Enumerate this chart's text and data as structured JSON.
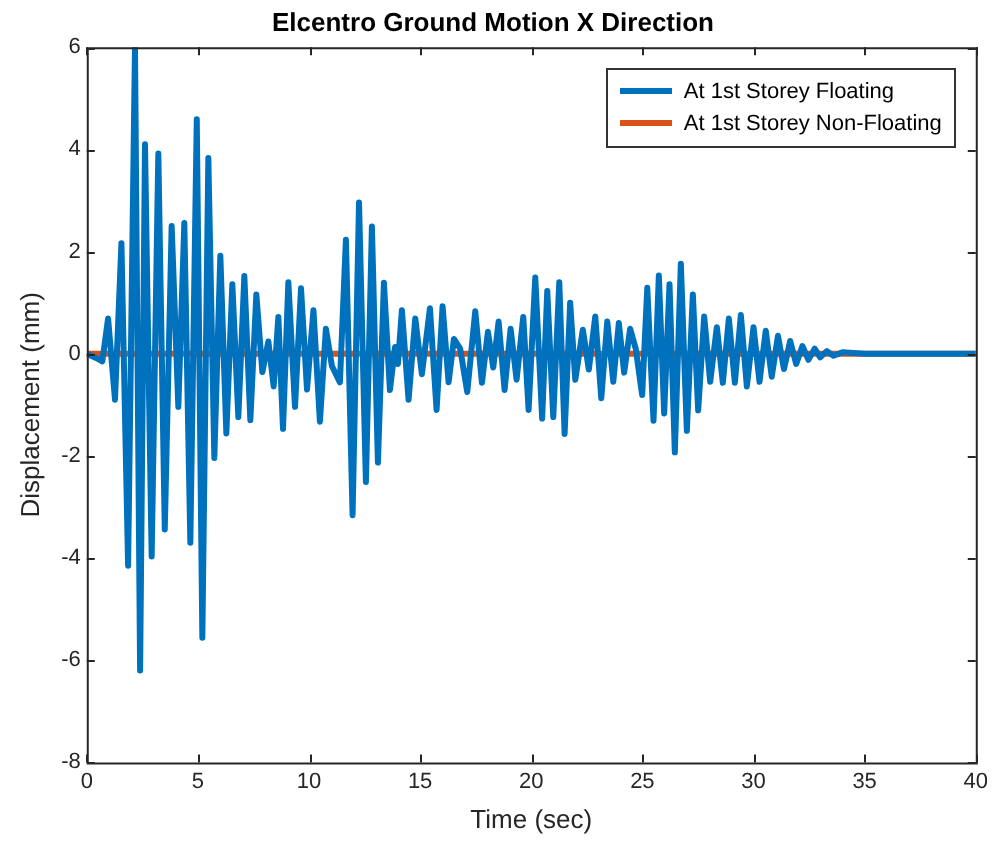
{
  "chart_data": {
    "type": "line",
    "title": "Elcentro Ground Motion X Direction",
    "xlabel": "Time (sec)",
    "ylabel": "Displacement (mm)",
    "xlim": [
      0,
      40
    ],
    "xticks": [
      0,
      5,
      10,
      15,
      20,
      25,
      30,
      35,
      40
    ],
    "ylim": [
      -8,
      6
    ],
    "yticks": [
      -8,
      -6,
      -4,
      -2,
      0,
      2,
      4,
      6
    ],
    "grid": false,
    "legend": "top right",
    "marker": "none",
    "line_style": "solid",
    "series": [
      {
        "name": "At 1st Storey Floating",
        "color": "#0072bd",
        "x": [
          0,
          0.5,
          0.7,
          0.96,
          1.27,
          1.56,
          1.86,
          2.17,
          2.4,
          2.62,
          2.92,
          3.22,
          3.51,
          3.82,
          4.12,
          4.39,
          4.66,
          4.95,
          5.2,
          5.47,
          5.74,
          6.01,
          6.28,
          6.55,
          6.82,
          7.09,
          7.36,
          7.63,
          7.9,
          8.17,
          8.41,
          8.62,
          8.83,
          9.07,
          9.37,
          9.64,
          9.91,
          10.2,
          10.49,
          10.76,
          11.03,
          11.39,
          11.66,
          11.96,
          12.25,
          12.56,
          12.83,
          13.1,
          13.37,
          13.64,
          13.87,
          14.0,
          14.18,
          14.48,
          14.78,
          15.08,
          15.44,
          15.74,
          16.01,
          16.28,
          16.52,
          16.8,
          17.12,
          17.48,
          17.78,
          18.05,
          18.29,
          18.53,
          18.8,
          19.07,
          19.34,
          19.64,
          19.88,
          20.18,
          20.49,
          20.72,
          20.99,
          21.26,
          21.5,
          21.75,
          21.98,
          22.32,
          22.59,
          22.88,
          23.15,
          23.42,
          23.69,
          23.94,
          24.18,
          24.45,
          24.7,
          24.99,
          25.22,
          25.5,
          25.74,
          25.98,
          26.22,
          26.46,
          26.73,
          27.0,
          27.27,
          27.51,
          27.78,
          28.05,
          28.35,
          28.62,
          28.89,
          29.16,
          29.43,
          29.7,
          30.0,
          30.27,
          30.55,
          30.82,
          31.1,
          31.37,
          31.65,
          31.92,
          32.2,
          32.47,
          32.75,
          33.0,
          33.3,
          33.6,
          34,
          35,
          40
        ],
        "values": [
          0,
          -0.1,
          -0.15,
          0.69,
          -0.9,
          2.16,
          -4.15,
          6,
          -6.2,
          4.1,
          -3.97,
          3.92,
          -3.44,
          2.5,
          -1.04,
          2.56,
          -3.7,
          4.59,
          -5.56,
          3.83,
          -2.04,
          1.92,
          -1.56,
          1.36,
          -1.24,
          1.52,
          -1.3,
          1.16,
          -0.36,
          0.24,
          -0.64,
          0.72,
          -1.47,
          1.4,
          -1.04,
          1.28,
          -0.7,
          0.85,
          -1.33,
          0.49,
          -0.24,
          -0.56,
          2.23,
          -3.16,
          2.96,
          -2.51,
          2.49,
          -2.13,
          1.39,
          -0.71,
          0.13,
          -0.2,
          0.85,
          -0.9,
          0.69,
          -0.4,
          0.89,
          -1.1,
          0.93,
          -0.56,
          0.29,
          0.1,
          -0.75,
          0.83,
          -0.57,
          0.43,
          -0.27,
          0.63,
          -0.71,
          0.49,
          -0.51,
          0.72,
          -1.1,
          1.49,
          -1.27,
          1.23,
          -1.24,
          1.4,
          -1.57,
          1,
          -0.51,
          0.47,
          -0.31,
          0.73,
          -0.87,
          0.63,
          -0.55,
          0.6,
          -0.37,
          0.49,
          0.1,
          -0.81,
          1.29,
          -1.31,
          1.53,
          -1.17,
          1.36,
          -1.93,
          1.76,
          -1.51,
          1.16,
          -1.11,
          0.73,
          -0.55,
          0.52,
          -0.57,
          0.69,
          -0.57,
          0.76,
          -0.64,
          0.52,
          -0.55,
          0.45,
          -0.45,
          0.35,
          -0.3,
          0.25,
          -0.2,
          0.15,
          -0.12,
          0.1,
          -0.07,
          0.05,
          -0.04,
          0.03,
          0,
          0
        ]
      },
      {
        "name": "At 1st Storey Non-Floating",
        "color": "#d95319",
        "x": [
          0,
          40
        ],
        "values": [
          0,
          0
        ]
      }
    ]
  }
}
